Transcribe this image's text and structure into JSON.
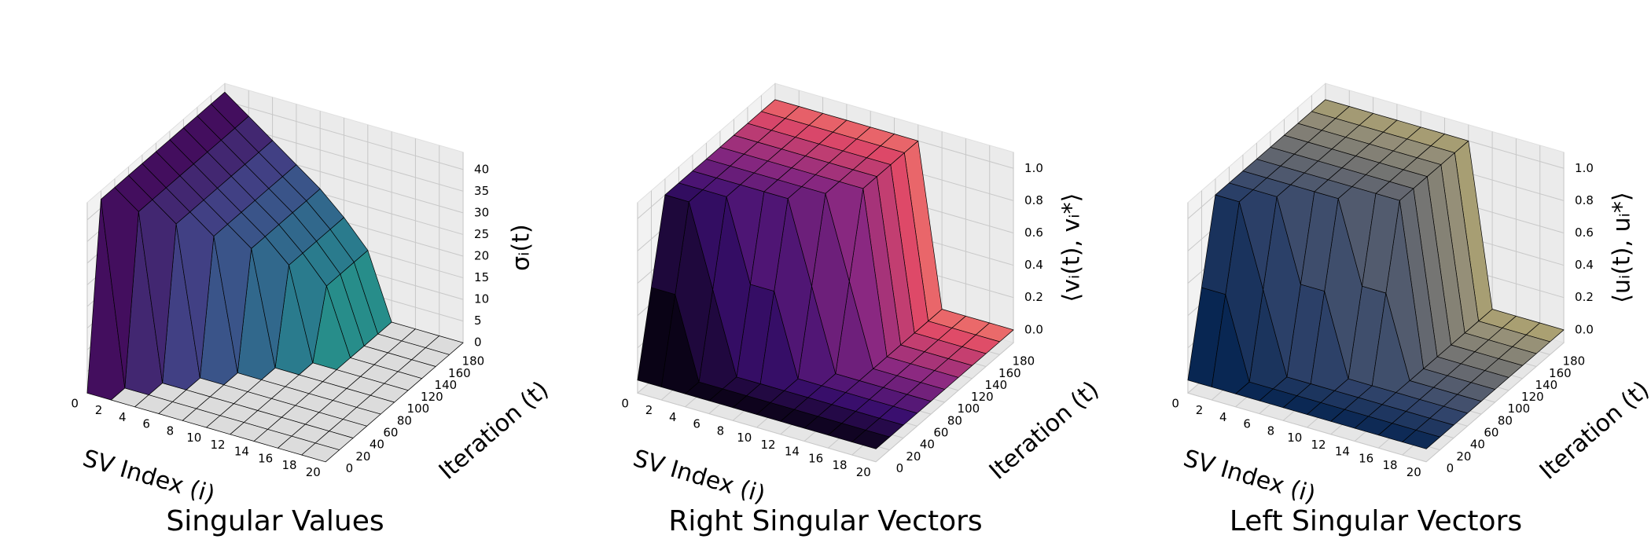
{
  "chart_data": [
    {
      "type": "surface3d",
      "title": "Singular Values",
      "xlabel": "SV Index (i)",
      "ylabel": "Iteration (t)",
      "zlabel": "σᵢ(t)",
      "colormap": "viridis",
      "color_by": "x",
      "x": [
        0,
        2,
        4,
        6,
        8,
        10,
        12,
        14,
        16,
        18,
        20
      ],
      "y": [
        0,
        20,
        40,
        60,
        80,
        100,
        120,
        140,
        160,
        180,
        200
      ],
      "z": [
        [
          0,
          0,
          0,
          0,
          0,
          0,
          0,
          0,
          0,
          0,
          0
        ],
        [
          42,
          0,
          0,
          0,
          0,
          0,
          0,
          0,
          0,
          0,
          0
        ],
        [
          42,
          38,
          0,
          0,
          0,
          0,
          0,
          0,
          0,
          0,
          0
        ],
        [
          42,
          38,
          34,
          0,
          0,
          0,
          0,
          0,
          0,
          0,
          0
        ],
        [
          42,
          38,
          34,
          30,
          0,
          0,
          0,
          0,
          0,
          0,
          0
        ],
        [
          42,
          38,
          34,
          30,
          26,
          0,
          0,
          0,
          0,
          0,
          0
        ],
        [
          42,
          38,
          34,
          30,
          26,
          21,
          0,
          0,
          0,
          0,
          0
        ],
        [
          42,
          38,
          34,
          30,
          26,
          21,
          15,
          0,
          0,
          0,
          0
        ],
        [
          42,
          38,
          34,
          30,
          26,
          21,
          15,
          0,
          0,
          0,
          0
        ],
        [
          42,
          38,
          34,
          30,
          26,
          21,
          15,
          0,
          0,
          0,
          0
        ],
        [
          42,
          38,
          34,
          30,
          26,
          21,
          15,
          0,
          0,
          0,
          0
        ]
      ],
      "xlim": [
        0,
        20
      ],
      "ylim": [
        0,
        200
      ],
      "zlim": [
        0,
        44
      ],
      "xticks": [
        0,
        2,
        4,
        6,
        8,
        10,
        12,
        14,
        16,
        18,
        20
      ],
      "yticks": [
        0,
        20,
        40,
        60,
        80,
        100,
        120,
        140,
        160,
        180
      ],
      "zticks": [
        0,
        5,
        10,
        15,
        20,
        25,
        30,
        35,
        40
      ],
      "grid": true
    },
    {
      "type": "surface3d",
      "title": "Right Singular Vectors",
      "xlabel": "SV Index (i)",
      "ylabel": "Iteration (t)",
      "zlabel": "⟨vᵢ(t), vᵢ*⟩",
      "colormap": "magma",
      "color_by": "y",
      "x": [
        0,
        2,
        4,
        6,
        8,
        10,
        12,
        14,
        16,
        18,
        20
      ],
      "y": [
        0,
        20,
        40,
        60,
        80,
        100,
        120,
        140,
        160,
        180,
        200
      ],
      "z": [
        [
          0,
          0,
          0,
          0,
          0,
          0,
          0,
          0,
          0,
          0,
          0
        ],
        [
          0.5,
          0.5,
          0,
          0,
          0,
          0,
          0,
          0,
          0,
          0,
          0
        ],
        [
          1,
          1,
          0.5,
          0,
          0,
          0,
          0,
          0,
          0,
          0,
          0
        ],
        [
          1,
          1,
          1,
          0.5,
          0.5,
          0,
          0,
          0,
          0,
          0,
          0
        ],
        [
          1,
          1,
          1,
          1,
          1,
          0.5,
          0,
          0,
          0,
          0,
          0
        ],
        [
          1,
          1,
          1,
          1,
          1,
          1,
          0.5,
          0,
          0,
          0,
          0
        ],
        [
          1,
          1,
          1,
          1,
          1,
          1,
          1,
          0,
          0,
          0,
          0
        ],
        [
          1,
          1,
          1,
          1,
          1,
          1,
          1,
          0,
          0,
          0,
          0
        ],
        [
          1,
          1,
          1,
          1,
          1,
          1,
          1,
          0,
          0,
          0,
          0
        ],
        [
          1,
          1,
          1,
          1,
          1,
          1,
          1,
          0,
          0,
          0,
          0
        ],
        [
          1,
          1,
          1,
          1,
          1,
          1,
          1,
          0,
          0,
          0,
          0
        ]
      ],
      "xlim": [
        0,
        20
      ],
      "ylim": [
        0,
        200
      ],
      "zlim": [
        -0.08,
        1.1
      ],
      "xticks": [
        0,
        2,
        4,
        6,
        8,
        10,
        12,
        14,
        16,
        18,
        20
      ],
      "yticks": [
        0,
        20,
        40,
        60,
        80,
        100,
        120,
        140,
        160,
        180
      ],
      "zticks": [
        {
          "value": 0,
          "label": "0.0"
        },
        0.2,
        0.4,
        0.6,
        0.8,
        {
          "value": 1,
          "label": "1.0"
        }
      ],
      "grid": true
    },
    {
      "type": "surface3d",
      "title": "Left Singular Vectors",
      "xlabel": "SV Index (i)",
      "ylabel": "Iteration (t)",
      "zlabel": "⟨uᵢ(t), uᵢ*⟩",
      "colormap": "cividis",
      "color_by": "y",
      "x": [
        0,
        2,
        4,
        6,
        8,
        10,
        12,
        14,
        16,
        18,
        20
      ],
      "y": [
        0,
        20,
        40,
        60,
        80,
        100,
        120,
        140,
        160,
        180,
        200
      ],
      "z": [
        [
          0,
          0,
          0,
          0,
          0,
          0,
          0,
          0,
          0,
          0,
          0
        ],
        [
          0.5,
          0.5,
          0,
          0,
          0,
          0,
          0,
          0,
          0,
          0,
          0
        ],
        [
          1,
          1,
          0.5,
          0,
          0,
          0,
          0,
          0,
          0,
          0,
          0
        ],
        [
          1,
          1,
          1,
          0.5,
          0.5,
          0,
          0,
          0,
          0,
          0,
          0
        ],
        [
          1,
          1,
          1,
          1,
          1,
          0.5,
          0.5,
          0,
          0,
          0,
          0
        ],
        [
          1,
          1,
          1,
          1,
          1,
          1,
          1,
          0,
          0,
          0,
          0
        ],
        [
          1,
          1,
          1,
          1,
          1,
          1,
          1,
          0,
          0,
          0,
          0
        ],
        [
          1,
          1,
          1,
          1,
          1,
          1,
          1,
          0,
          0,
          0,
          0
        ],
        [
          1,
          1,
          1,
          1,
          1,
          1,
          1,
          0,
          0,
          0,
          0
        ],
        [
          1,
          1,
          1,
          1,
          1,
          1,
          1,
          0,
          0,
          0,
          0
        ],
        [
          1,
          1,
          1,
          1,
          1,
          1,
          1,
          0,
          0,
          0,
          0
        ]
      ],
      "xlim": [
        0,
        20
      ],
      "ylim": [
        0,
        200
      ],
      "zlim": [
        -0.08,
        1.1
      ],
      "xticks": [
        0,
        2,
        4,
        6,
        8,
        10,
        12,
        14,
        16,
        18,
        20
      ],
      "yticks": [
        0,
        20,
        40,
        60,
        80,
        100,
        120,
        140,
        160,
        180
      ],
      "zticks": [
        {
          "value": 0,
          "label": "0.0"
        },
        0.2,
        0.4,
        0.6,
        0.8,
        {
          "value": 1,
          "label": "1.0"
        }
      ],
      "grid": true
    }
  ]
}
